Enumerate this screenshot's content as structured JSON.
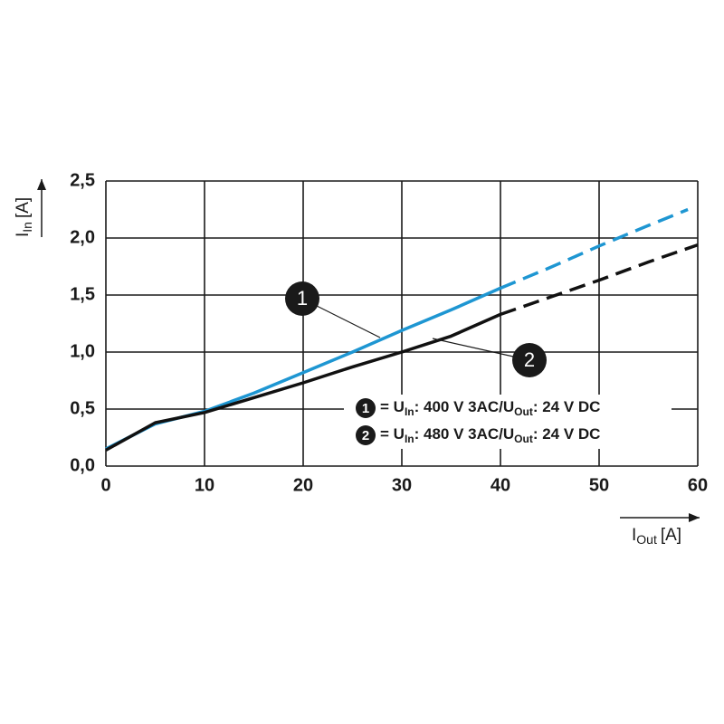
{
  "chart_data": {
    "type": "line",
    "x_label": {
      "main": "I",
      "sub": "Out",
      "unit": "[A]"
    },
    "y_label": {
      "main": "I",
      "sub": "In",
      "unit": "[A]"
    },
    "xlim": [
      0,
      60
    ],
    "xticks": [
      0,
      10,
      20,
      30,
      40,
      50,
      60
    ],
    "ylim": [
      0,
      2.5
    ],
    "yticks": [
      {
        "value": 0,
        "label": "0,0"
      },
      {
        "value": 0.5,
        "label": "0,5"
      },
      {
        "value": 1,
        "label": "1,0"
      },
      {
        "value": 1.5,
        "label": "1,5"
      },
      {
        "value": 2,
        "label": "2,0"
      },
      {
        "value": 2.5,
        "label": "2,5"
      }
    ],
    "grid": true,
    "series": [
      {
        "marker": "1",
        "name_parts": [
          "= U",
          "In",
          ": 400 V 3AC/U",
          "Out",
          ": 24 V DC"
        ],
        "color": "#1e96d2",
        "dashed_from": 40,
        "x": [
          0,
          5,
          10,
          15,
          20,
          25,
          30,
          35,
          40,
          45,
          50,
          55,
          59
        ],
        "values": [
          0.15,
          0.37,
          0.48,
          0.64,
          0.82,
          1.0,
          1.19,
          1.37,
          1.56,
          1.74,
          1.93,
          2.11,
          2.25
        ]
      },
      {
        "marker": "2",
        "name_parts": [
          "= U",
          "In",
          ": 480 V 3AC/U",
          "Out",
          ": 24 V DC"
        ],
        "color": "#111111",
        "dashed_from": 40,
        "x": [
          0,
          5,
          10,
          15,
          20,
          25,
          30,
          35,
          40,
          45,
          50,
          55,
          60
        ],
        "values": [
          0.14,
          0.38,
          0.47,
          0.6,
          0.73,
          0.87,
          1.0,
          1.14,
          1.33,
          1.48,
          1.63,
          1.79,
          1.94
        ]
      }
    ]
  }
}
